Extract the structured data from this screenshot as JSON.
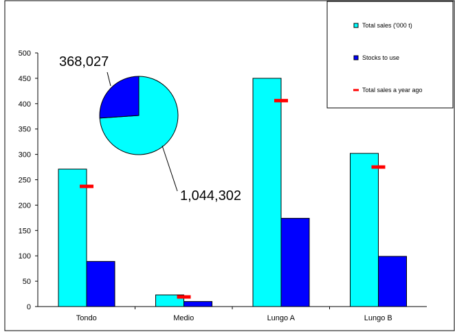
{
  "chart_data": {
    "type": "bar",
    "categories": [
      "Tondo",
      "Medio",
      "Lungo A",
      "Lungo B"
    ],
    "ylim": [
      0,
      500
    ],
    "yticks": [
      0,
      50,
      100,
      150,
      200,
      250,
      300,
      350,
      400,
      450,
      500
    ],
    "series": [
      {
        "name": "Total sales ('000 t)",
        "color": "#00ffff",
        "values": [
          271,
          23,
          450,
          302
        ]
      },
      {
        "name": "Stocks to use",
        "color": "#0000ff",
        "values": [
          89,
          10,
          174,
          99
        ]
      }
    ],
    "markers": {
      "name": "Total sales a year ago",
      "color": "#ff0000",
      "values": [
        237,
        19,
        406,
        275
      ]
    },
    "legend_position": "top-right",
    "grid": false,
    "inset_pie": {
      "type": "pie",
      "slices": [
        {
          "label": "368,027",
          "value": 368027,
          "color": "#0000ff"
        },
        {
          "label": "1,044,302",
          "value": 1044302,
          "color": "#00ffff"
        }
      ]
    }
  }
}
